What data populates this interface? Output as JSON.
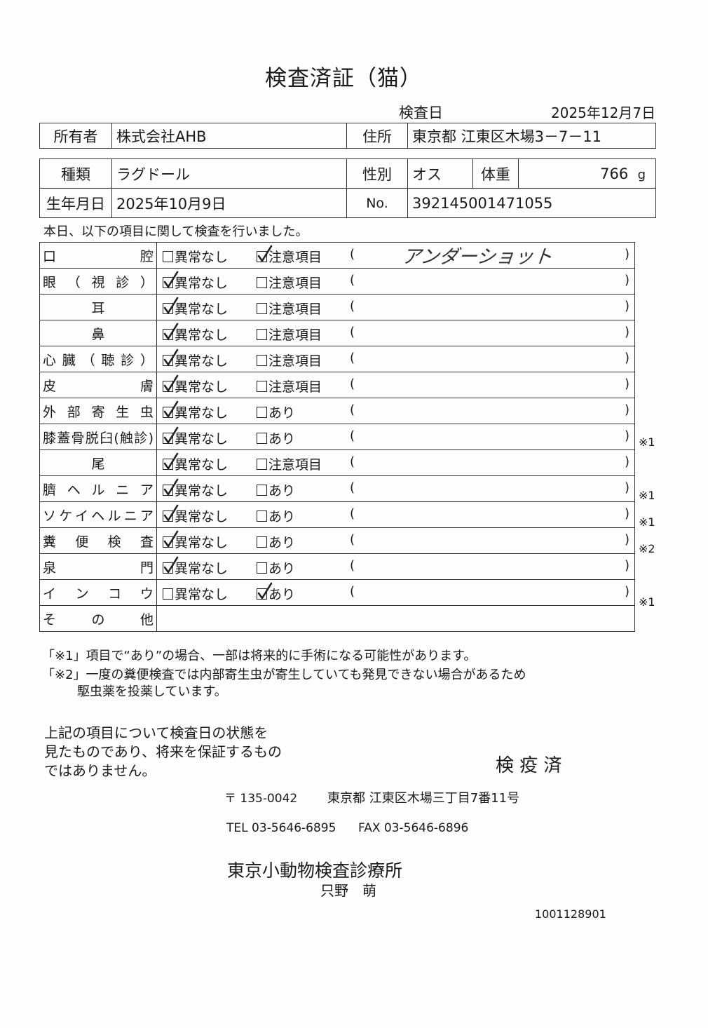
{
  "title": "検査済証（猫）",
  "exam_date": {
    "label": "検査日",
    "value": "2025年12月7日"
  },
  "owner": {
    "label": "所有者",
    "value": "株式会社AHB",
    "address_label": "住所",
    "address": "東京都 江東区木場3－7－11"
  },
  "pet": {
    "breed_label": "種類",
    "breed": "ラグドール",
    "sex_label": "性別",
    "sex": "オス",
    "weight_label": "体重",
    "weight": "766",
    "weight_unit": "g",
    "birth_label": "生年月日",
    "birth": "2025年10月9日",
    "no_label": "No.",
    "no": "392145001471055"
  },
  "intro": "本日、以下の項目に関して検査を行いました。",
  "options": {
    "normal": "異常なし",
    "caution": "注意項目",
    "present": "あり",
    "open": "(",
    "close": ")"
  },
  "items": [
    {
      "label": "口腔",
      "normal": false,
      "alt": "caution",
      "alt_checked": true,
      "comment": "アンダーショット",
      "note": ""
    },
    {
      "label": "眼（視診）",
      "normal": true,
      "alt": "caution",
      "alt_checked": false,
      "comment": "",
      "note": ""
    },
    {
      "label": "耳",
      "normal": true,
      "alt": "caution",
      "alt_checked": false,
      "comment": "",
      "note": ""
    },
    {
      "label": "鼻",
      "normal": true,
      "alt": "caution",
      "alt_checked": false,
      "comment": "",
      "note": ""
    },
    {
      "label": "心臓（聴診）",
      "normal": true,
      "alt": "caution",
      "alt_checked": false,
      "comment": "",
      "note": ""
    },
    {
      "label": "皮膚",
      "normal": true,
      "alt": "caution",
      "alt_checked": false,
      "comment": "",
      "note": ""
    },
    {
      "label": "外部寄生虫",
      "normal": true,
      "alt": "present",
      "alt_checked": false,
      "comment": "",
      "note": ""
    },
    {
      "label": "膝蓋骨脱臼(触診)",
      "normal": true,
      "alt": "present",
      "alt_checked": false,
      "comment": "",
      "note": "※1"
    },
    {
      "label": "尾",
      "normal": true,
      "alt": "caution",
      "alt_checked": false,
      "comment": "",
      "note": ""
    },
    {
      "label": "臍ヘルニア",
      "normal": true,
      "alt": "present",
      "alt_checked": false,
      "comment": "",
      "note": "※1"
    },
    {
      "label": "ソケイヘルニア",
      "normal": true,
      "alt": "present",
      "alt_checked": false,
      "comment": "",
      "note": "※1"
    },
    {
      "label": "糞便検査",
      "normal": true,
      "alt": "present",
      "alt_checked": false,
      "comment": "",
      "note": "※2"
    },
    {
      "label": "泉門",
      "normal": true,
      "alt": "present",
      "alt_checked": false,
      "comment": "",
      "note": ""
    },
    {
      "label": "インコウ",
      "normal": false,
      "alt": "present",
      "alt_checked": true,
      "comment": "",
      "note": "※1"
    }
  ],
  "other_label": "その他",
  "footnotes": [
    "「※1」項目で“あり”の場合、一部は将来的に手術になる可能性があります。",
    "「※2」一度の糞便検査では内部寄生虫が寄生していても発見できない場合があるため",
    "駆虫薬を投薬しています。"
  ],
  "disclaimer": [
    "上記の項目について検査日の状態を",
    "見たものであり、将来を保証するもの",
    "ではありません。"
  ],
  "stamp": "検 疫 済",
  "clinic": {
    "postal": "〒 135-0042",
    "address": "東京都 江東区木場三丁目7番11号",
    "tel": "TEL 03-5646-6895",
    "fax": "FAX 03-5646-6896",
    "name": "東京小動物検査診療所",
    "vet": "只野　萌",
    "code": "1001128901"
  }
}
